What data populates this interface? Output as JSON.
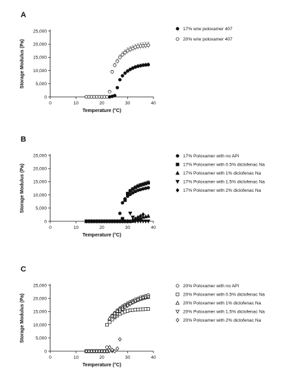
{
  "chart_data": [
    {
      "type": "scatter",
      "panel_label": "A",
      "xlabel": "Temperature (°C)",
      "ylabel": "Storage Modulus (Pa)",
      "xlim": [
        0,
        40
      ],
      "ylim": [
        0,
        25000
      ],
      "x_ticks": [
        "0",
        "10",
        "20",
        "30",
        "40"
      ],
      "y_ticks": [
        "0",
        "5,000",
        "10,000",
        "15,000",
        "20,000",
        "25,000"
      ],
      "legend_position": "right",
      "series": [
        {
          "name": "17% w/w poloxamer 407",
          "marker": "filled-circle",
          "error_bars": true,
          "x": [
            14,
            15,
            16,
            17,
            18,
            19,
            20,
            21,
            22,
            23,
            24,
            25,
            26,
            27,
            28,
            29,
            30,
            31,
            32,
            33,
            34,
            35,
            36,
            37,
            38
          ],
          "y": [
            0,
            0,
            0,
            0,
            0,
            0,
            0,
            0,
            0,
            0,
            200,
            500,
            3500,
            6500,
            8000,
            9000,
            9800,
            10400,
            10900,
            11300,
            11600,
            11800,
            12000,
            12100,
            12200
          ]
        },
        {
          "name": "20% w/w poloxamer 407",
          "marker": "open-circle",
          "error_bars": true,
          "x": [
            14,
            15,
            16,
            17,
            18,
            19,
            20,
            21,
            22,
            23,
            24,
            25,
            26,
            27,
            28,
            29,
            30,
            31,
            32,
            33,
            34,
            35,
            36,
            37,
            38
          ],
          "y": [
            0,
            0,
            0,
            0,
            0,
            0,
            0,
            0,
            0,
            2000,
            9500,
            12000,
            13500,
            15000,
            16000,
            16800,
            17500,
            18000,
            18400,
            18800,
            19100,
            19300,
            19400,
            19500,
            19600
          ]
        }
      ]
    },
    {
      "type": "scatter",
      "panel_label": "B",
      "xlabel": "Temperature (°C)",
      "ylabel": "Storage Modulus (Pa)",
      "xlim": [
        0,
        40
      ],
      "ylim": [
        0,
        25000
      ],
      "x_ticks": [
        "0",
        "10",
        "20",
        "30",
        "40"
      ],
      "y_ticks": [
        "0",
        "5,000",
        "10,000",
        "15,000",
        "20,000",
        "25,000"
      ],
      "legend_position": "right",
      "series": [
        {
          "name": "17% Poloxamer with no API",
          "marker": "filled-circle",
          "x": [
            14,
            15,
            16,
            17,
            18,
            19,
            20,
            21,
            22,
            23,
            24,
            25,
            26,
            27,
            28,
            29,
            30,
            31,
            32,
            33,
            34,
            35,
            36,
            37,
            38
          ],
          "y": [
            0,
            0,
            0,
            0,
            0,
            0,
            0,
            0,
            0,
            0,
            0,
            0,
            0,
            3000,
            7000,
            8500,
            9500,
            10200,
            10800,
            11300,
            11700,
            12000,
            12300,
            12500,
            12700
          ]
        },
        {
          "name": "17% Poloxamer with 0.5% diclofenac Na",
          "marker": "filled-square",
          "error_bars": true,
          "x": [
            14,
            15,
            16,
            17,
            18,
            19,
            20,
            21,
            22,
            23,
            24,
            25,
            26,
            27,
            28,
            29,
            30,
            31,
            32,
            33,
            34,
            35,
            36,
            37,
            38
          ],
          "y": [
            0,
            0,
            0,
            0,
            0,
            0,
            0,
            0,
            0,
            0,
            0,
            0,
            0,
            0,
            1000,
            8000,
            10500,
            11500,
            12200,
            12800,
            13300,
            13700,
            14000,
            14300,
            14600
          ]
        },
        {
          "name": "17% Poloxamer with 1% diclofenac Na",
          "marker": "filled-triangle-up",
          "x": [
            14,
            15,
            16,
            17,
            18,
            19,
            20,
            21,
            22,
            23,
            24,
            25,
            26,
            27,
            28,
            29,
            30,
            31,
            32,
            33,
            34,
            35,
            36,
            37,
            38
          ],
          "y": [
            0,
            0,
            0,
            0,
            0,
            0,
            0,
            0,
            0,
            0,
            0,
            0,
            0,
            0,
            0,
            0,
            0,
            0,
            100,
            500,
            1000,
            1300,
            1600,
            1800,
            2000
          ]
        },
        {
          "name": "17% Poloxamer with 1.5% diclofenac Na",
          "marker": "filled-triangle-down",
          "x": [
            14,
            15,
            16,
            17,
            18,
            19,
            20,
            21,
            22,
            23,
            24,
            25,
            26,
            27,
            28,
            29,
            30,
            31,
            32,
            33,
            34,
            35,
            36,
            37,
            38
          ],
          "y": [
            0,
            0,
            0,
            0,
            0,
            0,
            0,
            0,
            0,
            0,
            0,
            0,
            0,
            0,
            0,
            0,
            0,
            3000,
            1500,
            0,
            0,
            0,
            0,
            0,
            0
          ]
        },
        {
          "name": "17% Poloxamer with 2% diclofenac Na",
          "marker": "filled-diamond",
          "x": [
            14,
            15,
            16,
            17,
            18,
            19,
            20,
            21,
            22,
            23,
            24,
            25,
            26,
            27,
            28,
            29,
            30,
            31,
            32,
            33,
            34,
            35,
            36
          ],
          "y": [
            0,
            0,
            0,
            0,
            0,
            0,
            0,
            0,
            0,
            0,
            0,
            0,
            0,
            0,
            0,
            0,
            0,
            0,
            500,
            1000,
            1500,
            2000,
            2600
          ]
        }
      ]
    },
    {
      "type": "scatter",
      "panel_label": "C",
      "xlabel": "Temperature (°C)",
      "ylabel": "Storage Modulus (Pa)",
      "xlim": [
        0,
        40
      ],
      "ylim": [
        0,
        25000
      ],
      "x_ticks": [
        "0",
        "10",
        "20",
        "30",
        "40"
      ],
      "y_ticks": [
        "0",
        "5,000",
        "10,000",
        "15,000",
        "20,000",
        "25,000"
      ],
      "legend_position": "right",
      "series": [
        {
          "name": "20% Poloxamer with no API",
          "marker": "open-circle",
          "x": [
            14,
            15,
            16,
            17,
            18,
            19,
            20,
            21,
            22,
            23,
            24,
            25,
            26,
            27,
            28,
            29,
            30,
            31,
            32,
            33,
            34,
            35,
            36,
            37,
            38
          ],
          "y": [
            0,
            0,
            0,
            0,
            0,
            0,
            0,
            0,
            1500,
            12000,
            13500,
            14500,
            15500,
            16300,
            17000,
            17600,
            18200,
            18700,
            19200,
            19600,
            20000,
            20400,
            20700,
            21000,
            21300
          ]
        },
        {
          "name": "20% Poloxamer with 0.5% diclofenac Na",
          "marker": "open-square",
          "x": [
            14,
            15,
            16,
            17,
            18,
            19,
            20,
            21,
            22,
            23,
            24,
            25,
            26,
            27,
            28,
            29,
            30,
            31,
            32,
            33,
            34,
            35,
            36,
            37,
            38
          ],
          "y": [
            0,
            0,
            0,
            0,
            0,
            0,
            0,
            0,
            10000,
            11000,
            12000,
            12800,
            13500,
            14100,
            14600,
            15000,
            15300,
            15500,
            15600,
            15700,
            15800,
            15850,
            15900,
            15950,
            16000
          ]
        },
        {
          "name": "20% Poloxamer with 1% diclofenac Na",
          "marker": "open-triangle-up",
          "x": [
            14,
            15,
            16,
            17,
            18,
            19,
            20,
            21,
            22,
            23,
            24,
            25,
            26,
            27,
            28,
            29,
            30,
            31,
            32,
            33,
            34,
            35,
            36,
            37,
            38
          ],
          "y": [
            0,
            0,
            0,
            0,
            0,
            0,
            0,
            0,
            0,
            12500,
            13500,
            14500,
            15300,
            16000,
            16600,
            17200,
            17700,
            18200,
            18700,
            19100,
            19500,
            19800,
            20100,
            20400,
            20600
          ]
        },
        {
          "name": "20% Poloxamer with 1.5% diclofenac Na",
          "marker": "open-triangle-down",
          "x": [
            14,
            15,
            16,
            17,
            18,
            19,
            20,
            21,
            22,
            23,
            24,
            25,
            26,
            27,
            28,
            29,
            30,
            31,
            32,
            33,
            34,
            35,
            36,
            37,
            38
          ],
          "y": [
            0,
            0,
            0,
            0,
            0,
            0,
            0,
            0,
            0,
            0,
            0,
            13000,
            14000,
            15000,
            15800,
            16500,
            17200,
            17800,
            18400,
            18900,
            19400,
            19800,
            20100,
            20300,
            20500
          ]
        },
        {
          "name": "20% Poloxamer with 2% diclofenac Na",
          "marker": "open-diamond",
          "x": [
            14,
            15,
            16,
            17,
            18,
            19,
            20,
            21,
            22,
            23,
            24,
            25,
            26,
            27
          ],
          "y": [
            0,
            0,
            0,
            0,
            0,
            0,
            0,
            0,
            0,
            1500,
            500,
            0,
            1000,
            4500
          ]
        }
      ]
    }
  ]
}
